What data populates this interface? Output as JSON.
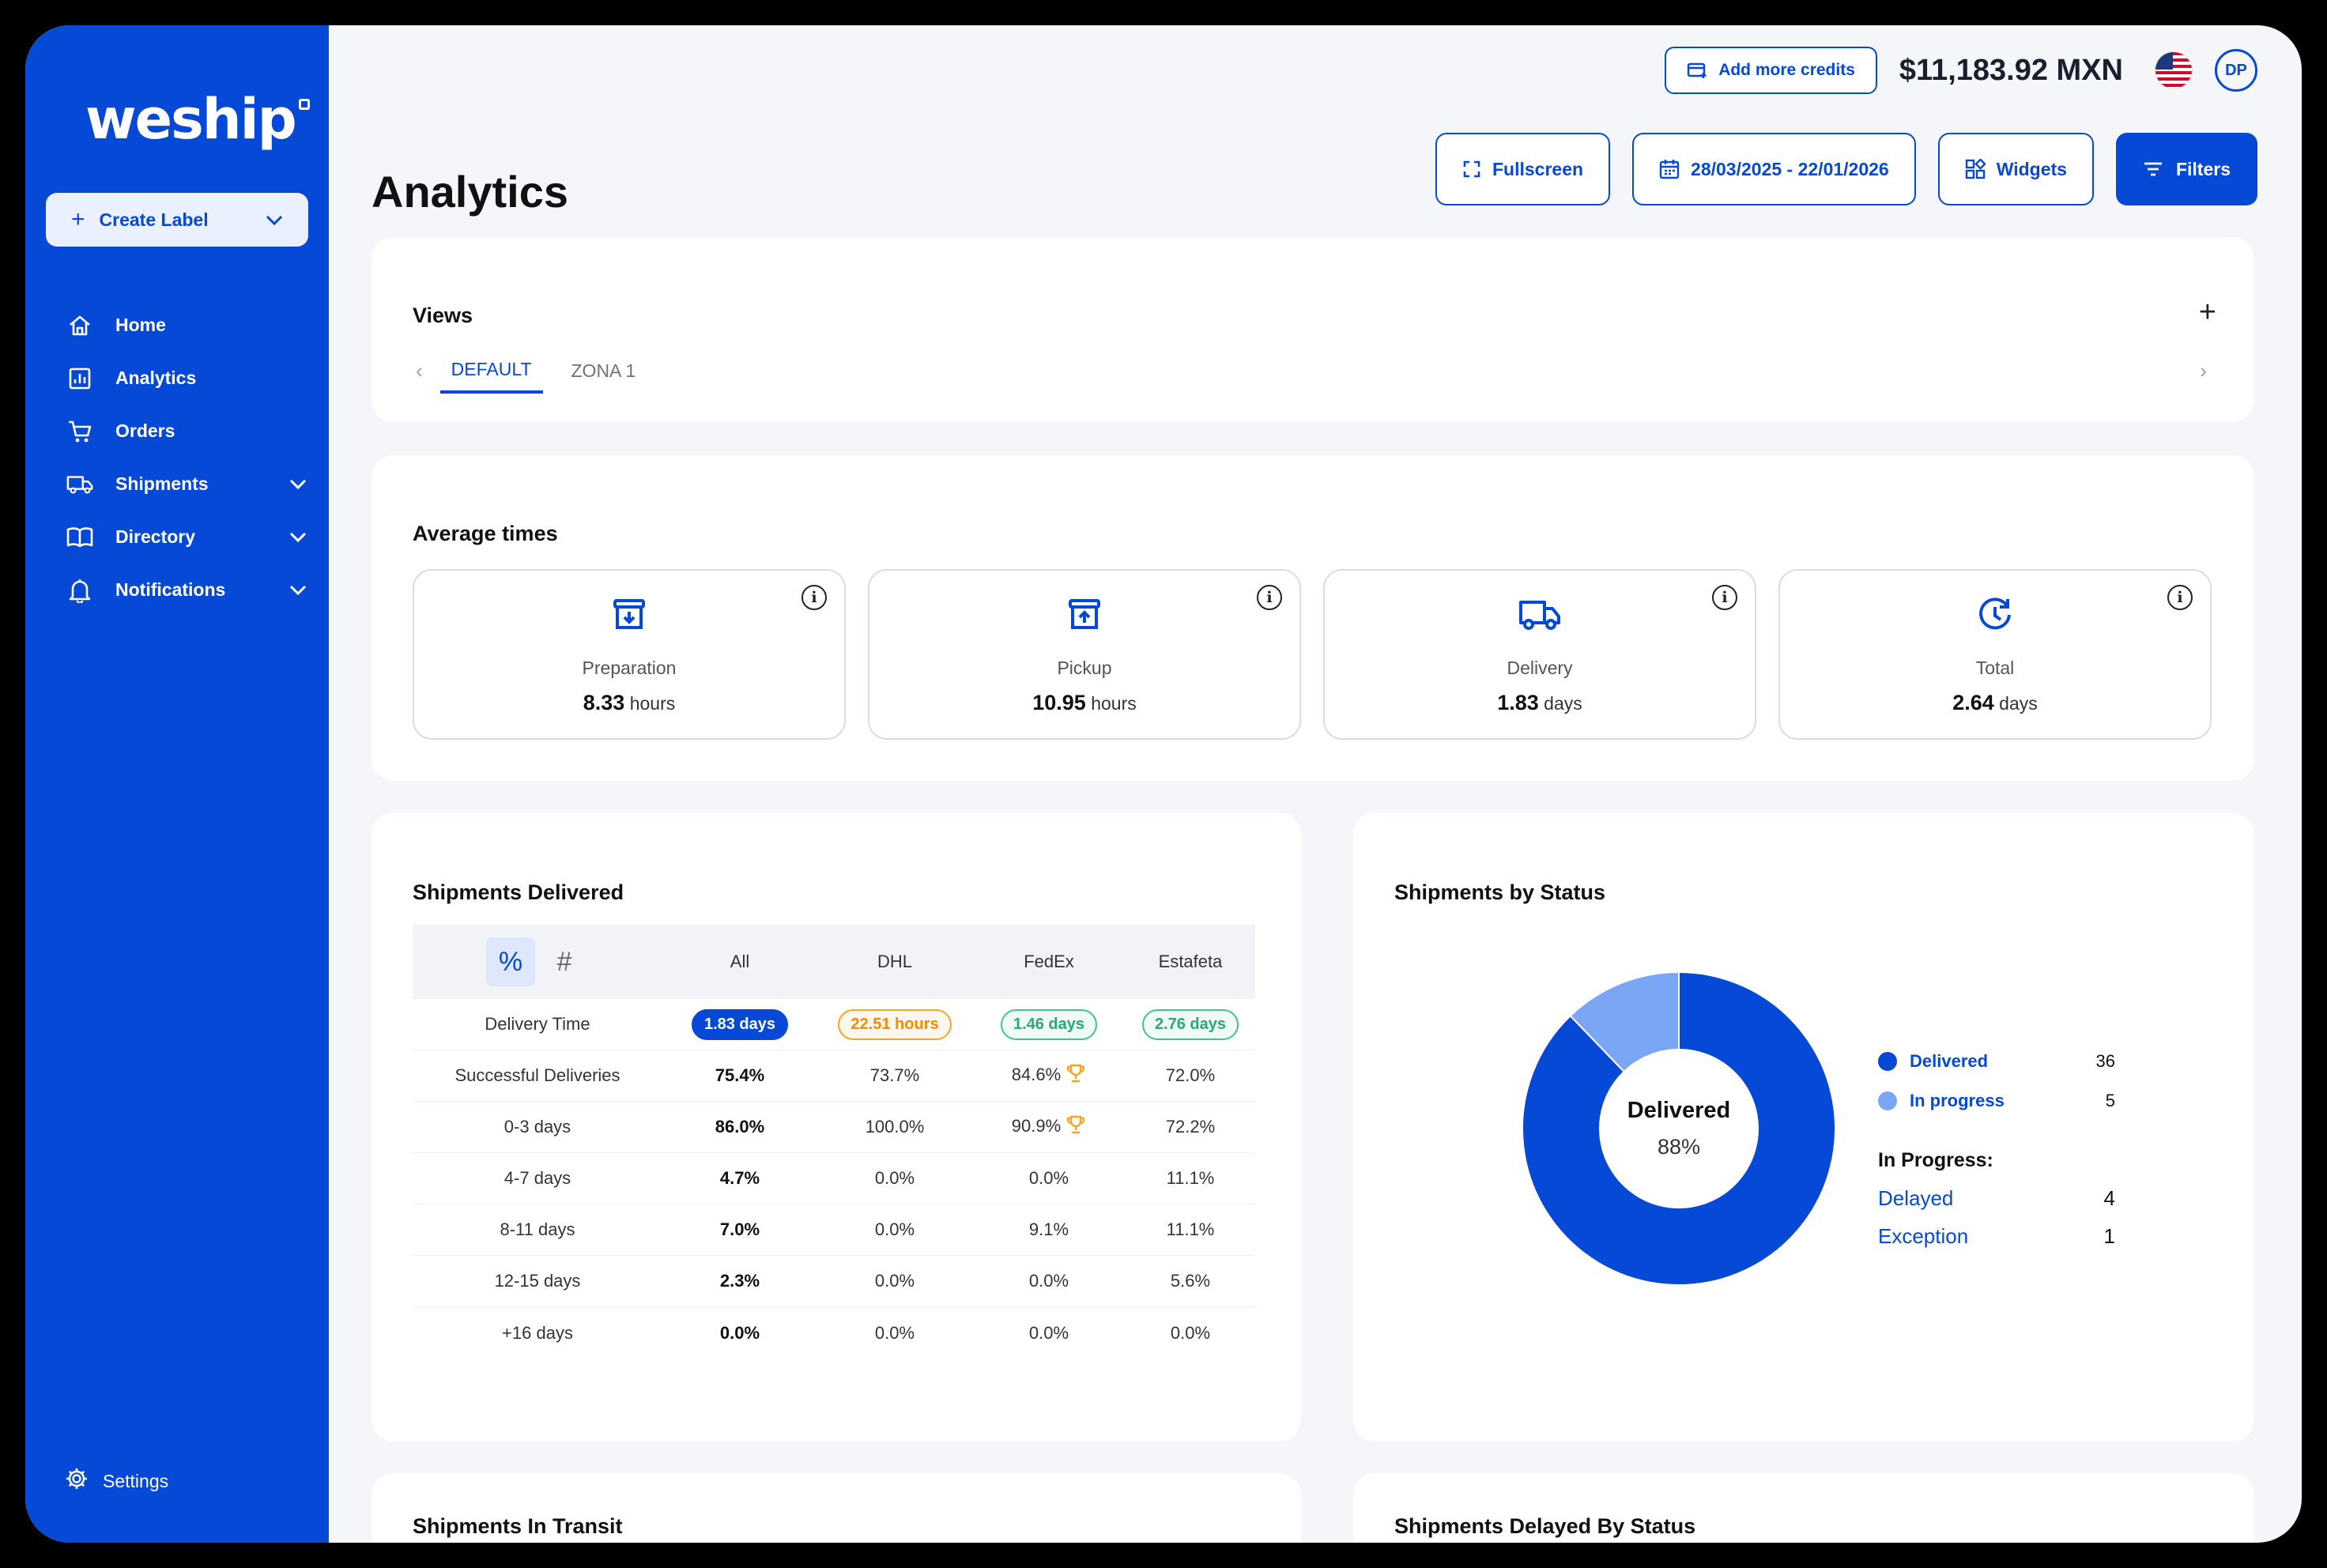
{
  "brand": "weship",
  "sidebar": {
    "create_label": "Create Label",
    "items": [
      {
        "label": "Home",
        "icon": "home-icon"
      },
      {
        "label": "Analytics",
        "icon": "analytics-icon"
      },
      {
        "label": "Orders",
        "icon": "cart-icon"
      },
      {
        "label": "Shipments",
        "icon": "truck-icon",
        "expandable": true
      },
      {
        "label": "Directory",
        "icon": "book-icon",
        "expandable": true
      },
      {
        "label": "Notifications",
        "icon": "bell-icon",
        "expandable": true
      }
    ],
    "settings": "Settings"
  },
  "header": {
    "add_credits": "Add more credits",
    "balance": "$11,183.92 MXN",
    "avatar": "DP"
  },
  "page": {
    "title": "Analytics",
    "fullscreen": "Fullscreen",
    "date_range": "28/03/2025 - 22/01/2026",
    "widgets": "Widgets",
    "filters": "Filters"
  },
  "views": {
    "title": "Views",
    "tabs": [
      "DEFAULT",
      "ZONA 1"
    ],
    "active_tab": "DEFAULT"
  },
  "average_times": {
    "title": "Average times",
    "metrics": [
      {
        "label": "Preparation",
        "value": "8.33",
        "unit": "hours",
        "icon": "box-down-icon"
      },
      {
        "label": "Pickup",
        "value": "10.95",
        "unit": "hours",
        "icon": "box-up-icon"
      },
      {
        "label": "Delivery",
        "value": "1.83",
        "unit": "days",
        "icon": "truck-icon"
      },
      {
        "label": "Total",
        "value": "2.64",
        "unit": "days",
        "icon": "clock-icon"
      }
    ]
  },
  "shipments_delivered": {
    "title": "Shipments Delivered",
    "toggle": [
      "%",
      "#"
    ],
    "columns": [
      "All",
      "DHL",
      "FedEx",
      "Estafeta"
    ],
    "delivery_time": {
      "label": "Delivery Time",
      "values": [
        "1.83 days",
        "22.51 hours",
        "1.46 days",
        "2.76 days"
      ]
    },
    "rows": [
      {
        "label": "Successful Deliveries",
        "values": [
          "75.4%",
          "73.7%",
          "84.6%",
          "72.0%"
        ],
        "trophy": 2
      },
      {
        "label": "0-3 days",
        "values": [
          "86.0%",
          "100.0%",
          "90.9%",
          "72.2%"
        ],
        "trophy": 2
      },
      {
        "label": "4-7 days",
        "values": [
          "4.7%",
          "0.0%",
          "0.0%",
          "11.1%"
        ]
      },
      {
        "label": "8-11 days",
        "values": [
          "7.0%",
          "0.0%",
          "9.1%",
          "11.1%"
        ]
      },
      {
        "label": "12-15 days",
        "values": [
          "2.3%",
          "0.0%",
          "0.0%",
          "5.6%"
        ]
      },
      {
        "label": "+16 days",
        "values": [
          "0.0%",
          "0.0%",
          "0.0%",
          "0.0%"
        ]
      }
    ]
  },
  "shipments_by_status": {
    "title": "Shipments by Status",
    "center_label": "Delivered",
    "center_value": "88%",
    "legend": [
      {
        "name": "Delivered",
        "value": "36",
        "color": "#0649d6"
      },
      {
        "name": "In progress",
        "value": "5",
        "color": "#7aa6f5"
      }
    ],
    "in_progress_title": "In Progress:",
    "in_progress": [
      {
        "name": "Delayed",
        "value": "4"
      },
      {
        "name": "Exception",
        "value": "1"
      }
    ]
  },
  "chart_data": {
    "type": "pie",
    "categories": [
      "Delivered",
      "In progress"
    ],
    "values": [
      36,
      5
    ]
  },
  "bottom_cards": {
    "in_transit": "Shipments In Transit",
    "delayed_by_status": "Shipments Delayed By Status"
  },
  "colors": {
    "primary": "#0649d6",
    "light": "#7aa6f5",
    "orange": "#f08c00",
    "green": "#2aa876"
  }
}
